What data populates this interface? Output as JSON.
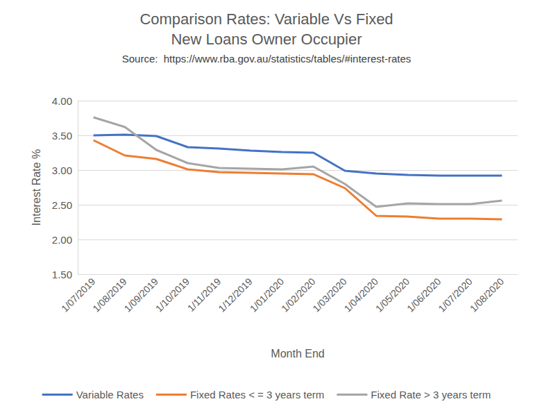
{
  "chart_data": {
    "type": "line",
    "title": "Comparison Rates: Variable Vs Fixed\nNew Loans Owner Occupier",
    "subtitle": "Source:  https://www.rba.gov.au/statistics/tables/#interest-rates",
    "x_label": "Month End",
    "y_label": "Interest Rate %",
    "categories": [
      "1/07/2019",
      "1/08/2019",
      "1/09/2019",
      "1/10/2019",
      "1/11/2019",
      "1/12/2019",
      "1/01/2020",
      "1/02/2020",
      "1/03/2020",
      "1/04/2020",
      "1/05/2020",
      "1/06/2020",
      "1/07/2020",
      "1/08/2020"
    ],
    "series": [
      {
        "name": "Variable Rates",
        "color": "#4472c4",
        "marker": "none",
        "line_style": "solid",
        "values": [
          3.5,
          3.51,
          3.49,
          3.33,
          3.31,
          3.28,
          3.26,
          3.25,
          2.99,
          2.95,
          2.93,
          2.92,
          2.92,
          2.92
        ]
      },
      {
        "name": "Fixed Rates < = 3 years term",
        "color": "#ed7d31",
        "marker": "none",
        "line_style": "solid",
        "values": [
          3.43,
          3.21,
          3.16,
          3.01,
          2.97,
          2.96,
          2.95,
          2.94,
          2.74,
          2.34,
          2.33,
          2.3,
          2.3,
          2.29
        ]
      },
      {
        "name": "Fixed Rate > 3 years term",
        "color": "#a5a5a5",
        "marker": "none",
        "line_style": "solid",
        "values": [
          3.76,
          3.62,
          3.29,
          3.1,
          3.03,
          3.02,
          3.01,
          3.05,
          2.8,
          2.47,
          2.52,
          2.51,
          2.51,
          2.56
        ]
      }
    ],
    "ylim": [
      1.5,
      4.0
    ],
    "yticks": [
      {
        "value": 1.5,
        "label": "1.50"
      },
      {
        "value": 2.0,
        "label": "2.00"
      },
      {
        "value": 2.5,
        "label": "2.50"
      },
      {
        "value": 3.0,
        "label": "3.00"
      },
      {
        "value": 3.5,
        "label": "3.50"
      },
      {
        "value": 4.0,
        "label": "4.00"
      }
    ],
    "grid": true,
    "legend": "bottom"
  }
}
